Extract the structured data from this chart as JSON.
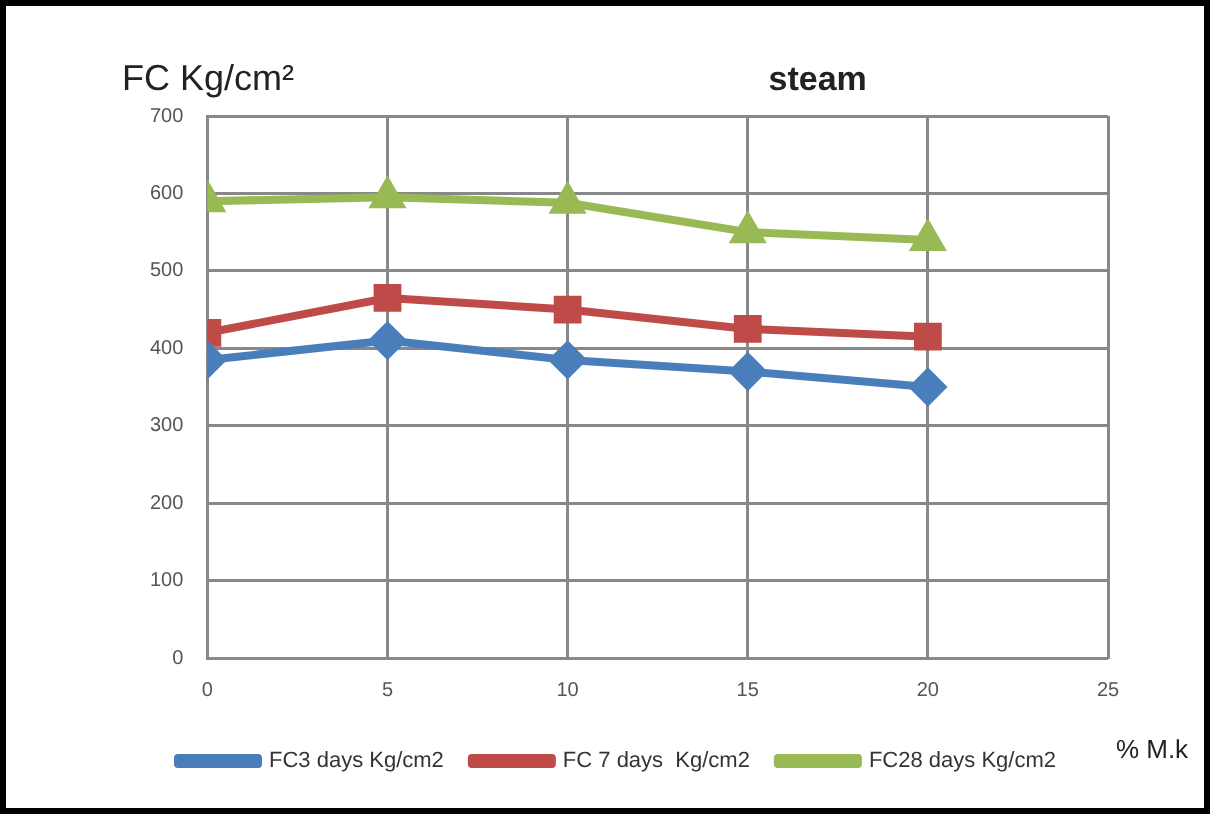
{
  "chart_data": {
    "type": "line",
    "title": "steam",
    "xlabel": "% M.k",
    "ylabel": "FC Kg/cm²",
    "x": [
      0,
      5,
      10,
      15,
      20
    ],
    "xlim": [
      0,
      25
    ],
    "xticks": [
      0,
      5,
      10,
      15,
      20,
      25
    ],
    "ylim": [
      0,
      700
    ],
    "yticks": [
      0,
      100,
      200,
      300,
      400,
      500,
      600,
      700
    ],
    "grid": true,
    "legend": "bottom",
    "line_style": "solid",
    "series": [
      {
        "name": "FC3 days Kg/cm2",
        "color": "#4a7ebb",
        "marker": "diamond",
        "values": [
          385,
          410,
          385,
          370,
          350
        ]
      },
      {
        "name": "FC 7 days  Kg/cm2",
        "color": "#be4b48",
        "marker": "square",
        "values": [
          420,
          465,
          450,
          425,
          415
        ]
      },
      {
        "name": "FC28 days Kg/cm2",
        "color": "#98b954",
        "marker": "triangle",
        "values": [
          590,
          595,
          588,
          550,
          540
        ]
      }
    ]
  }
}
